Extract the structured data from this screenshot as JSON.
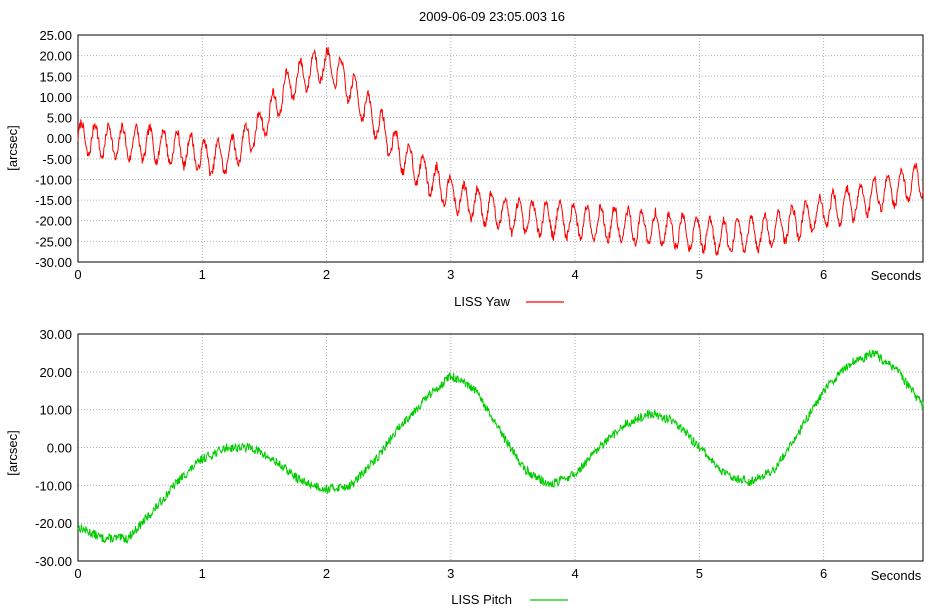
{
  "chart_data": [
    {
      "type": "line",
      "title": "2009-06-09 23:05.003 16",
      "xlabel": "Seconds",
      "ylabel": "[arcsec]",
      "xlim": [
        0,
        6.8
      ],
      "ylim": [
        -30,
        25
      ],
      "grid": true,
      "xticks": [
        "0",
        "1",
        "2",
        "3",
        "4",
        "5",
        "6"
      ],
      "yticks": [
        "25.00",
        "20.00",
        "15.00",
        "10.00",
        "5.00",
        "0.00",
        "-5.00",
        "-10.00",
        "-15.00",
        "-20.00",
        "-25.00",
        "-30.00"
      ],
      "legend": {
        "position": "bottom-center"
      },
      "series": [
        {
          "name": "LISS Yaw",
          "color": "#ff0000",
          "oscillation": {
            "amplitude": 4,
            "period_s": 0.11
          },
          "trend": {
            "x": [
              0,
              0.3,
              0.6,
              0.9,
              1.05,
              1.2,
              1.45,
              1.7,
              1.95,
              2.1,
              2.35,
              2.6,
              2.85,
              3.1,
              3.5,
              4.0,
              4.5,
              5.0,
              5.2,
              5.5,
              5.8,
              6.1,
              6.4,
              6.8
            ],
            "y": [
              0,
              -1,
              -1.5,
              -3,
              -5,
              -4.5,
              2,
              13,
              18,
              16,
              6,
              -4,
              -10,
              -15,
              -19,
              -20,
              -21.5,
              -23,
              -24,
              -23,
              -20,
              -17,
              -14,
              -10
            ]
          }
        }
      ]
    },
    {
      "type": "line",
      "title": "",
      "xlabel": "Seconds",
      "ylabel": "[arcsec]",
      "xlim": [
        0,
        6.8
      ],
      "ylim": [
        -30,
        30
      ],
      "grid": true,
      "xticks": [
        "0",
        "1",
        "2",
        "3",
        "4",
        "5",
        "6"
      ],
      "yticks": [
        "30.00",
        "20.00",
        "10.00",
        "0.00",
        "-10.00",
        "-20.00",
        "-30.00"
      ],
      "legend": {
        "position": "bottom-center"
      },
      "series": [
        {
          "name": "LISS Pitch",
          "color": "#00cc00",
          "noise_amplitude": 1.2,
          "trend": {
            "x": [
              0,
              0.2,
              0.4,
              0.6,
              0.8,
              1.0,
              1.2,
              1.4,
              1.6,
              1.8,
              2.0,
              2.2,
              2.4,
              2.6,
              2.8,
              3.0,
              3.2,
              3.4,
              3.6,
              3.8,
              4.0,
              4.2,
              4.4,
              4.6,
              4.8,
              5.0,
              5.2,
              5.4,
              5.6,
              5.8,
              6.0,
              6.2,
              6.4,
              6.6,
              6.8
            ],
            "y": [
              -21,
              -24,
              -24,
              -17,
              -9,
              -3,
              0,
              0,
              -4,
              -9,
              -11,
              -10,
              -3,
              6,
              13,
              19,
              15,
              4,
              -6,
              -10,
              -7,
              0,
              6,
              9,
              7,
              0,
              -7,
              -9,
              -6,
              4,
              15,
              22,
              25,
              20,
              11
            ]
          }
        }
      ]
    }
  ]
}
